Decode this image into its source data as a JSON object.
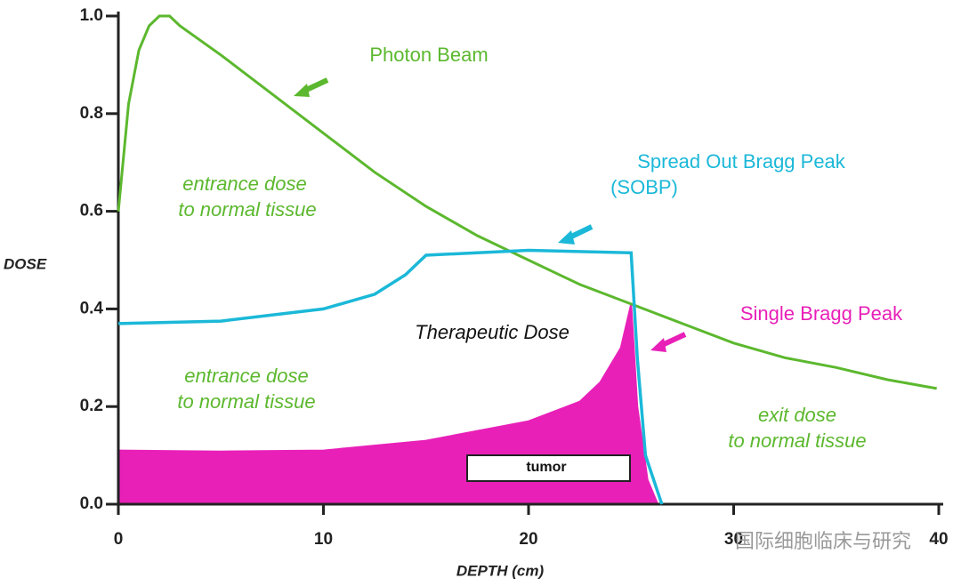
{
  "chart_data": {
    "type": "line",
    "xlabel": "DEPTH (cm)",
    "ylabel": "DOSE",
    "xlim": [
      0,
      40
    ],
    "ylim": [
      0,
      1.0
    ],
    "xticks": [
      0,
      10,
      20,
      30,
      40
    ],
    "yticks": [
      {
        "value": 0,
        "label": "0.0"
      },
      0.2,
      0.4,
      0.6,
      0.8,
      {
        "value": 1,
        "label": "1.0"
      }
    ],
    "series": [
      {
        "name": "Photon Beam",
        "color": "#5cb82e",
        "x": [
          0,
          0.5,
          1,
          1.5,
          2,
          2.5,
          3,
          5,
          7.5,
          10,
          12.5,
          15,
          17.5,
          20,
          22.5,
          25,
          27.5,
          30,
          32.5,
          35,
          37.5,
          39.9
        ],
        "values": [
          0.6,
          0.82,
          0.93,
          0.98,
          1.0,
          1.0,
          0.98,
          0.92,
          0.84,
          0.76,
          0.68,
          0.61,
          0.55,
          0.5,
          0.45,
          0.41,
          0.37,
          0.33,
          0.3,
          0.28,
          0.255,
          0.237
        ]
      },
      {
        "name": "Spread Out Bragg Peak",
        "color": "#1bb8d8",
        "x": [
          0,
          5,
          10,
          12.5,
          14,
          15,
          20,
          25,
          25.3,
          25.7,
          26.5
        ],
        "values": [
          0.37,
          0.375,
          0.4,
          0.43,
          0.47,
          0.51,
          0.52,
          0.515,
          0.3,
          0.1,
          0
        ]
      },
      {
        "name": "Single Bragg Peak",
        "color": "#e820b8",
        "x": [
          0,
          5,
          10,
          15,
          20,
          22.5,
          23.5,
          24.5,
          25,
          25.3,
          25.8,
          26.3
        ],
        "values": [
          0.11,
          0.108,
          0.11,
          0.13,
          0.17,
          0.21,
          0.25,
          0.32,
          0.41,
          0.2,
          0.05,
          0
        ]
      }
    ],
    "annotations": [
      {
        "text": "entrance dose"
      },
      {
        "text": "to normal tissue"
      },
      {
        "text": "entrance dose"
      },
      {
        "text": "to normal tissue"
      },
      {
        "text": "Therapeutic Dose"
      },
      {
        "text": "exit dose"
      },
      {
        "text": "to normal tissue"
      },
      {
        "text": "(SOBP)"
      },
      {
        "text": "tumor"
      },
      {
        "text": "国际细胞临床与研究"
      }
    ]
  }
}
